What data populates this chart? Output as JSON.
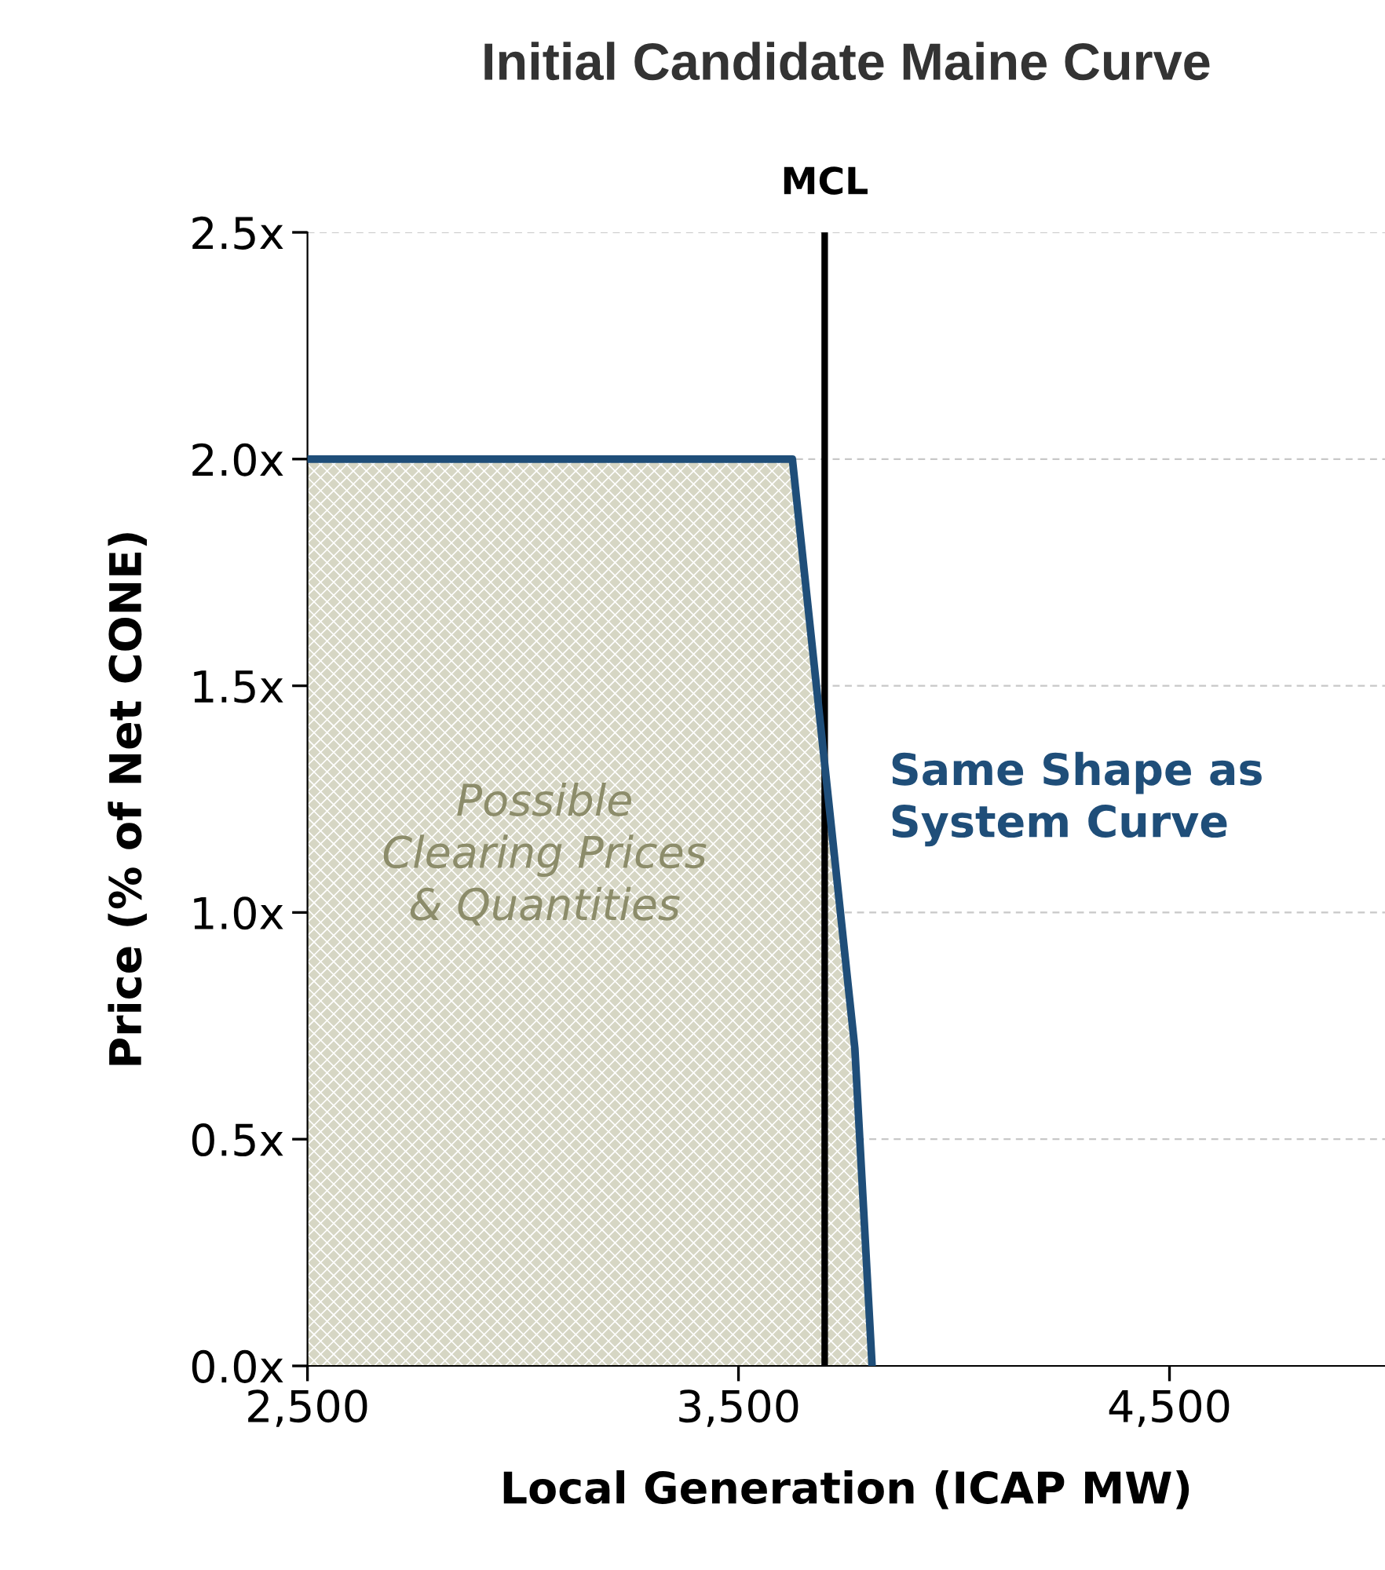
{
  "chart_data": {
    "type": "area",
    "title": "Initial Candidate Maine Curve",
    "xlabel": "Local Generation (ICAP MW)",
    "ylabel": "Price (% of Net CONE)",
    "series": [
      {
        "color": "#1f4e79",
        "x": [
          2500,
          3625,
          3770,
          3810
        ],
        "values": [
          2.0,
          2.0,
          0.7,
          0.0
        ]
      }
    ],
    "xlim": [
      2500,
      5000
    ],
    "xticks": [
      {
        "value": 2500,
        "label": "2,500"
      },
      {
        "value": 3500,
        "label": "3,500"
      },
      {
        "value": 4500,
        "label": "4,500"
      }
    ],
    "ylim": [
      0,
      2.5
    ],
    "yticks": [
      {
        "value": 0,
        "label": "0.0x"
      },
      {
        "value": 0.5,
        "label": "0.5x"
      },
      {
        "value": 1.0,
        "label": "1.0x"
      },
      {
        "value": 1.5,
        "label": "1.5x"
      },
      {
        "value": 2.0,
        "label": "2.0x"
      },
      {
        "value": 2.5,
        "label": "2.5x"
      }
    ],
    "ref_lines": [
      {
        "axis": "x",
        "value": 3700,
        "label": "MCL",
        "color": "#000000"
      }
    ],
    "annotations": [
      "Possible\nClearing Prices\n& Quantities",
      "Same Shape as\nSystem Curve"
    ],
    "grid": "y",
    "legend": false
  }
}
